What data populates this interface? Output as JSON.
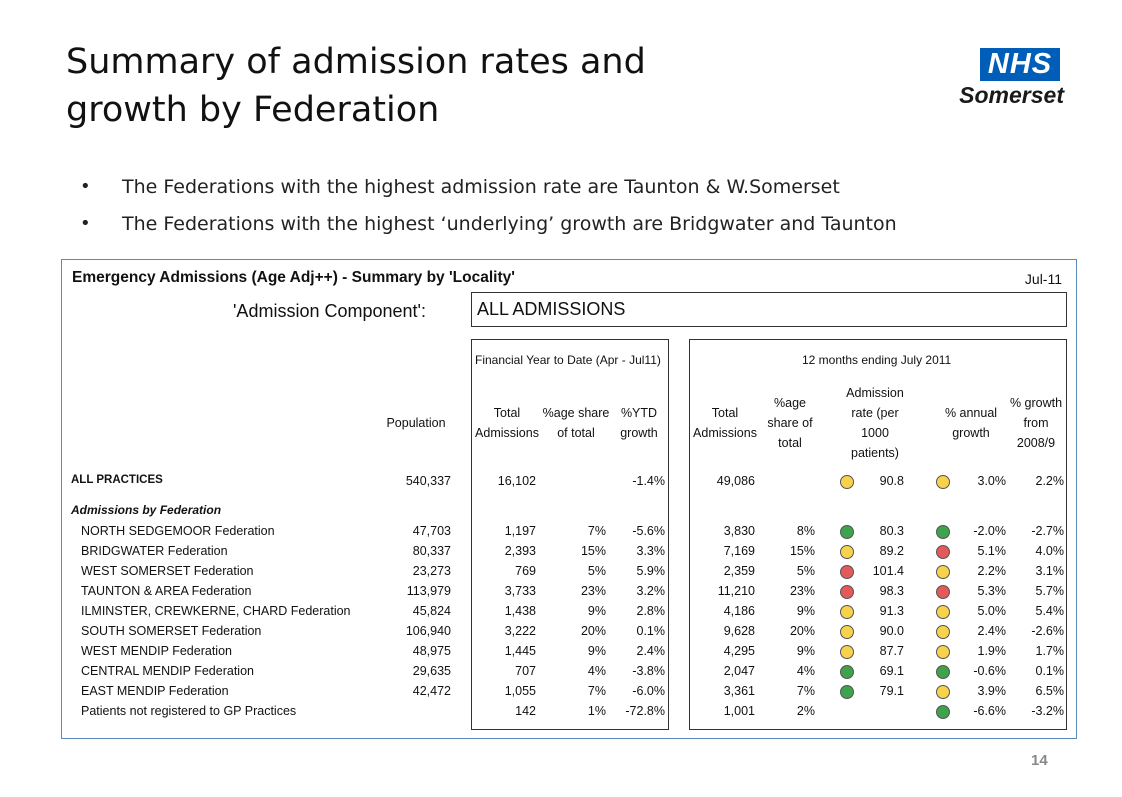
{
  "title_line1": "Summary of admission rates and",
  "title_line2": "growth by Federation",
  "logo": {
    "nhs": "NHS",
    "org": "Somerset"
  },
  "bullets": [
    "The Federations with the highest admission rate are Taunton & W.Somerset",
    "The Federations with the highest ‘underlying’ growth are Bridgwater and Taunton"
  ],
  "panel": {
    "title": "Emergency Admissions (Age Adj++) - Summary by 'Locality'",
    "date": "Jul-11",
    "component_label": "'Admission Component':",
    "component_value": "ALL ADMISSIONS",
    "fytd_header": "Financial Year to Date (Apr - Jul11)",
    "months_header": "12 months ending July 2011",
    "headers": {
      "population": "Population",
      "total_adm": "Total Admissions",
      "share": "%age share of total",
      "ytd_growth": "%YTD growth",
      "total_adm_12": "Total Admissions",
      "share_12": "%age share of total",
      "rate": "Admission rate (per 1000 patients)",
      "annual_growth": "% annual growth",
      "growth_0809": "% growth from 2008/9"
    },
    "all_practices": {
      "label": "ALL PRACTICES",
      "population": "540,337",
      "ytd_total": "16,102",
      "ytd_share": "",
      "ytd_growth": "-1.4%",
      "total12": "49,086",
      "share12": "",
      "rate": "90.8",
      "annual": "3.0%",
      "growth0809": "2.2%",
      "rate_dot": "#f7d24a",
      "annual_dot": "#f7d24a"
    },
    "section_label": "Admissions by Federation",
    "rows": [
      {
        "label": "NORTH SEDGEMOOR Federation",
        "population": "47,703",
        "ytd_total": "1,197",
        "ytd_share": "7%",
        "ytd_growth": "-5.6%",
        "total12": "3,830",
        "share12": "8%",
        "rate": "80.3",
        "annual": "-2.0%",
        "growth0809": "-2.7%",
        "rate_dot": "#3fa34d",
        "annual_dot": "#3fa34d"
      },
      {
        "label": "BRIDGWATER Federation",
        "population": "80,337",
        "ytd_total": "2,393",
        "ytd_share": "15%",
        "ytd_growth": "3.3%",
        "total12": "7,169",
        "share12": "15%",
        "rate": "89.2",
        "annual": "5.1%",
        "growth0809": "4.0%",
        "rate_dot": "#f7d24a",
        "annual_dot": "#e35a5a"
      },
      {
        "label": "WEST SOMERSET Federation",
        "population": "23,273",
        "ytd_total": "769",
        "ytd_share": "5%",
        "ytd_growth": "5.9%",
        "total12": "2,359",
        "share12": "5%",
        "rate": "101.4",
        "annual": "2.2%",
        "growth0809": "3.1%",
        "rate_dot": "#e35a5a",
        "annual_dot": "#f7d24a"
      },
      {
        "label": "TAUNTON & AREA Federation",
        "population": "113,979",
        "ytd_total": "3,733",
        "ytd_share": "23%",
        "ytd_growth": "3.2%",
        "total12": "11,210",
        "share12": "23%",
        "rate": "98.3",
        "annual": "5.3%",
        "growth0809": "5.7%",
        "rate_dot": "#e35a5a",
        "annual_dot": "#e35a5a"
      },
      {
        "label": "ILMINSTER, CREWKERNE, CHARD Federation",
        "population": "45,824",
        "ytd_total": "1,438",
        "ytd_share": "9%",
        "ytd_growth": "2.8%",
        "total12": "4,186",
        "share12": "9%",
        "rate": "91.3",
        "annual": "5.0%",
        "growth0809": "5.4%",
        "rate_dot": "#f7d24a",
        "annual_dot": "#f7d24a"
      },
      {
        "label": "SOUTH SOMERSET Federation",
        "population": "106,940",
        "ytd_total": "3,222",
        "ytd_share": "20%",
        "ytd_growth": "0.1%",
        "total12": "9,628",
        "share12": "20%",
        "rate": "90.0",
        "annual": "2.4%",
        "growth0809": "-2.6%",
        "rate_dot": "#f7d24a",
        "annual_dot": "#f7d24a"
      },
      {
        "label": "WEST MENDIP Federation",
        "population": "48,975",
        "ytd_total": "1,445",
        "ytd_share": "9%",
        "ytd_growth": "2.4%",
        "total12": "4,295",
        "share12": "9%",
        "rate": "87.7",
        "annual": "1.9%",
        "growth0809": "1.7%",
        "rate_dot": "#f7d24a",
        "annual_dot": "#f7d24a"
      },
      {
        "label": "CENTRAL MENDIP Federation",
        "population": "29,635",
        "ytd_total": "707",
        "ytd_share": "4%",
        "ytd_growth": "-3.8%",
        "total12": "2,047",
        "share12": "4%",
        "rate": "69.1",
        "annual": "-0.6%",
        "growth0809": "0.1%",
        "rate_dot": "#3fa34d",
        "annual_dot": "#3fa34d"
      },
      {
        "label": "EAST MENDIP Federation",
        "population": "42,472",
        "ytd_total": "1,055",
        "ytd_share": "7%",
        "ytd_growth": "-6.0%",
        "total12": "3,361",
        "share12": "7%",
        "rate": "79.1",
        "annual": "3.9%",
        "growth0809": "6.5%",
        "rate_dot": "#3fa34d",
        "annual_dot": "#f7d24a"
      },
      {
        "label": "Patients not registered to GP Practices",
        "population": "",
        "ytd_total": "142",
        "ytd_share": "1%",
        "ytd_growth": "-72.8%",
        "total12": "1,001",
        "share12": "2%",
        "rate": "",
        "annual": "-6.6%",
        "growth0809": "-3.2%",
        "rate_dot": "",
        "annual_dot": "#3fa34d"
      }
    ]
  },
  "page_number": "14"
}
